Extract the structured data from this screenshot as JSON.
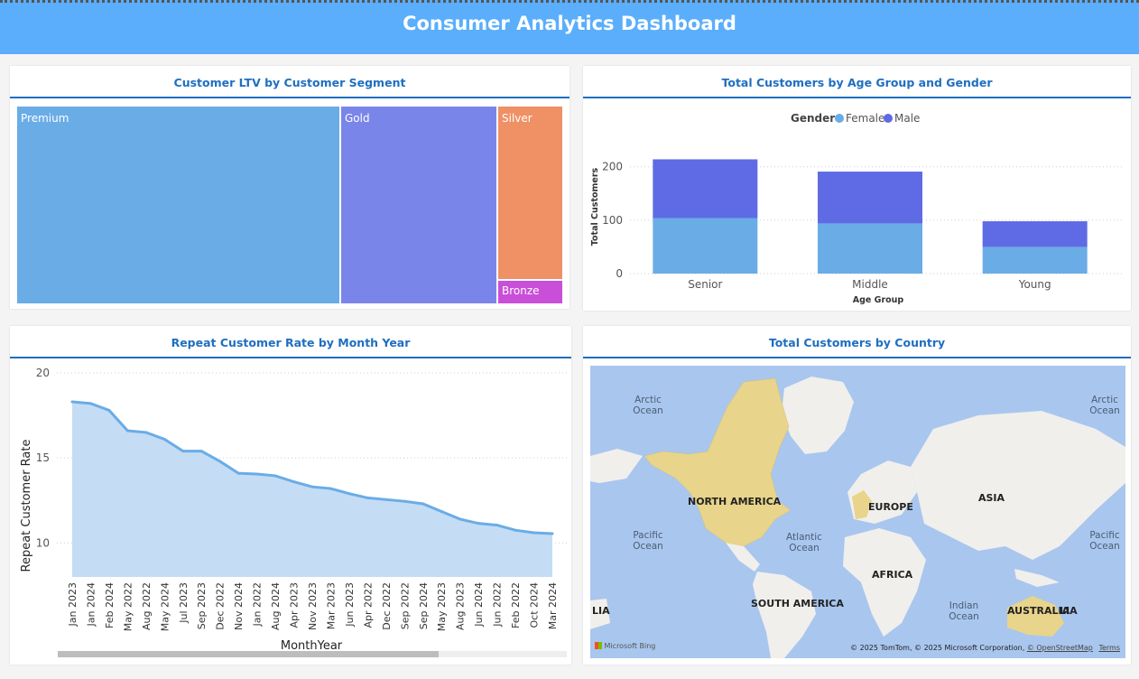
{
  "header": {
    "title": "Consumer Analytics Dashboard"
  },
  "treemap": {
    "title": "Customer LTV by Customer Segment",
    "segments": [
      {
        "label": "Premium",
        "color": "#6aace6"
      },
      {
        "label": "Gold",
        "color": "#7a85ea"
      },
      {
        "label": "Silver",
        "color": "#ef9065"
      },
      {
        "label": "Bronze",
        "color": "#c94ed8"
      }
    ]
  },
  "age_chart": {
    "title": "Total Customers by Age Group and Gender",
    "legend_title": "Gender",
    "female_label": "Female",
    "male_label": "Male"
  },
  "repeat_chart": {
    "title": "Repeat Customer Rate by Month Year"
  },
  "map": {
    "title": "Total Customers by Country",
    "oceans": {
      "arctic_left": "Arctic Ocean",
      "arctic_right": "Arctic Ocean",
      "pacific_left": "Pacific Ocean",
      "pacific_right": "Pacific Ocean",
      "atlantic": "Atlantic Ocean",
      "indian": "Indian Ocean"
    },
    "continents": {
      "north_america": "NORTH AMERICA",
      "europe": "EUROPE",
      "asia": "ASIA",
      "africa": "AFRICA",
      "south_america": "SOUTH AMERICA",
      "australia": "AUSTRALIA",
      "lia_left": "LIA",
      "lia_right": "LIA"
    },
    "bing_logo": "Microsoft Bing",
    "copyright": "© 2025 TomTom, © 2025 Microsoft Corporation,",
    "osm_link": "© OpenStreetMap",
    "terms_link": "Terms",
    "highlight_color": "#e8d48a"
  },
  "chart_data": [
    {
      "type": "bar",
      "title": "Total Customers by Age Group and Gender",
      "xlabel": "Age Group",
      "ylabel": "Total Customers",
      "categories": [
        "Senior",
        "Middle",
        "Young"
      ],
      "series": [
        {
          "name": "Female",
          "values": [
            104,
            94,
            50
          ],
          "color": "#6aace6"
        },
        {
          "name": "Male",
          "values": [
            110,
            97,
            48
          ],
          "color": "#5f6be4"
        }
      ],
      "stacked": true,
      "yticks": [
        0,
        100,
        200
      ],
      "ylim": [
        0,
        230
      ],
      "legend": "top"
    },
    {
      "type": "area",
      "title": "Repeat Customer Rate by Month Year",
      "xlabel": "MonthYear",
      "ylabel": "Repeat Customer Rate",
      "categories": [
        "Jan 2023",
        "Jan 2024",
        "Feb 2024",
        "May 2022",
        "Aug 2022",
        "May 2024",
        "Jul 2023",
        "Sep 2023",
        "Dec 2022",
        "Nov 2024",
        "Jan 2022",
        "Aug 2024",
        "Apr 2023",
        "Nov 2023",
        "Mar 2023",
        "Jun 2023",
        "Apr 2022",
        "Dec 2022",
        "Sep 2022",
        "Sep 2024",
        "May 2023",
        "Aug 2023",
        "Jun 2024",
        "Jun 2022",
        "Feb 2022",
        "Oct 2024",
        "Mar 2024"
      ],
      "values": [
        18.3,
        18.2,
        17.8,
        16.6,
        16.5,
        16.1,
        15.4,
        15.4,
        14.8,
        14.1,
        14.05,
        13.95,
        13.6,
        13.3,
        13.2,
        12.9,
        12.65,
        12.55,
        12.45,
        12.3,
        11.85,
        11.4,
        11.15,
        11.05,
        10.75,
        10.6,
        10.55
      ],
      "yticks": [
        10,
        15,
        20
      ],
      "ylim": [
        8,
        20
      ]
    }
  ]
}
